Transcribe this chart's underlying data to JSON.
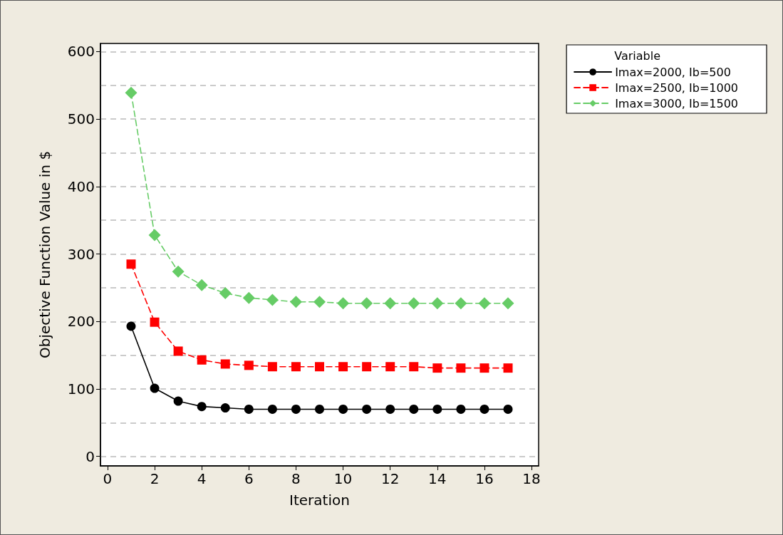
{
  "chart_data": {
    "type": "line",
    "xlabel": "Iteration",
    "ylabel": "Objective Function Value in $",
    "legend_title": "Variable",
    "legend": "top right",
    "grid": "y",
    "x": [
      1,
      2,
      3,
      4,
      5,
      6,
      7,
      8,
      9,
      10,
      11,
      12,
      13,
      14,
      15,
      16,
      17
    ],
    "xlim": [
      -0.3,
      18.3
    ],
    "xticks": [
      0,
      2,
      4,
      6,
      8,
      10,
      12,
      14,
      16,
      18
    ],
    "ylim": [
      -14,
      612
    ],
    "yticks": [
      0,
      {
        "value": 50,
        "label": null
      },
      100,
      {
        "value": 150,
        "label": null
      },
      200,
      {
        "value": 250,
        "label": null
      },
      300,
      {
        "value": 350,
        "label": null
      },
      400,
      {
        "value": 450,
        "label": null
      },
      500,
      {
        "value": 550,
        "label": null
      },
      600
    ],
    "series": [
      {
        "name": "Imax=2000, Ib=500",
        "color": "#000000",
        "marker": "circle",
        "line_style": "solid",
        "values": [
          193,
          101,
          82,
          74,
          72,
          70,
          70,
          70,
          70,
          70,
          70,
          70,
          70,
          70,
          70,
          70,
          70
        ]
      },
      {
        "name": "Imax=2500, Ib=1000",
        "color": "#ff0000",
        "marker": "square",
        "line_style": "dashed",
        "values": [
          285,
          199,
          156,
          143,
          137,
          135,
          133,
          133,
          133,
          133,
          133,
          133,
          133,
          131,
          131,
          131,
          131
        ]
      },
      {
        "name": "Imax=3000, Ib=1500",
        "color": "#66cc66",
        "marker": "diamond",
        "line_style": "dashed",
        "values": [
          539,
          328,
          274,
          254,
          242,
          235,
          232,
          229,
          229,
          227,
          227,
          227,
          227,
          227,
          227,
          227,
          227
        ]
      }
    ]
  }
}
